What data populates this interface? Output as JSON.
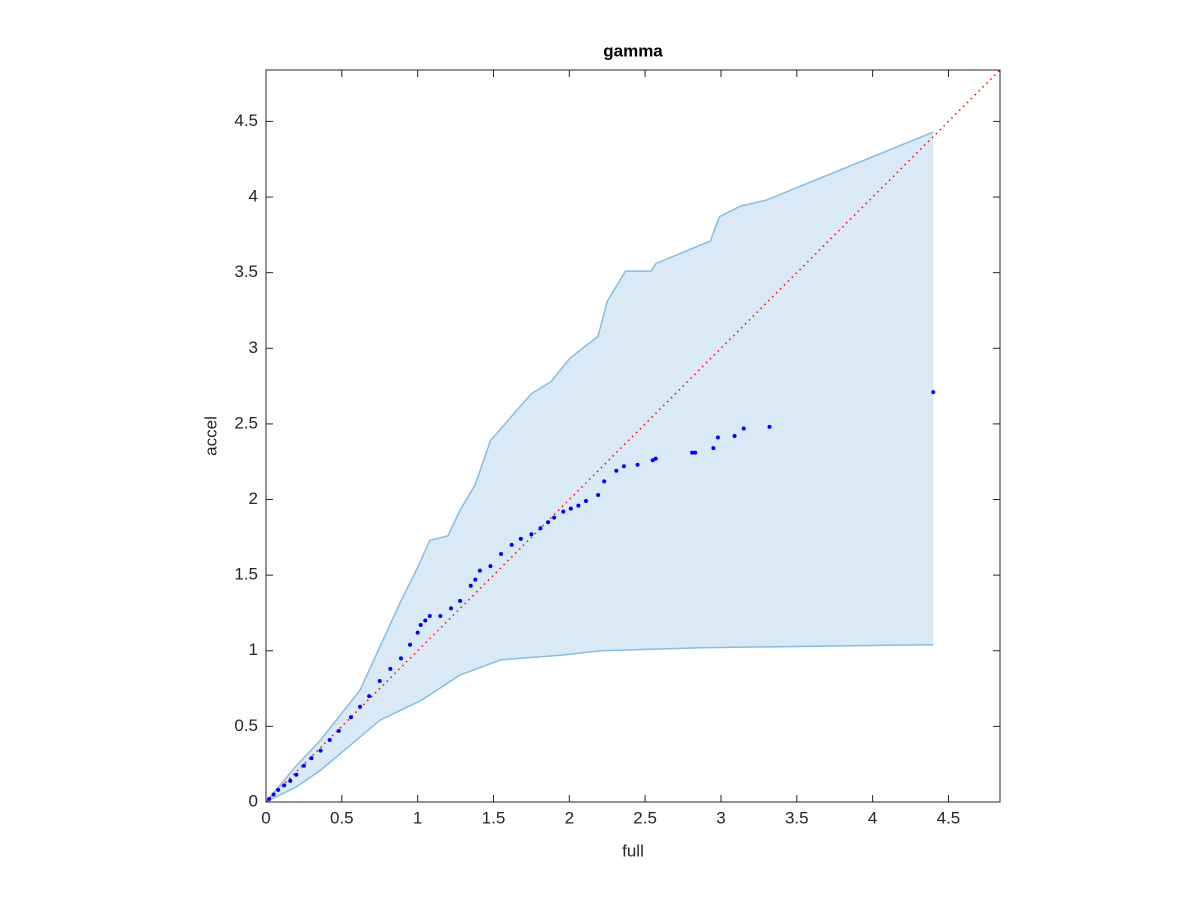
{
  "chart_data": {
    "type": "scatter",
    "title": "gamma",
    "x_label": "full",
    "y_label": "accel",
    "xlim": [
      0,
      4.84
    ],
    "ylim": [
      0,
      4.84
    ],
    "xticks": [
      0,
      0.5,
      1,
      1.5,
      2,
      2.5,
      3,
      3.5,
      4,
      4.5
    ],
    "yticks": [
      0,
      0.5,
      1,
      1.5,
      2,
      2.5,
      3,
      3.5,
      4,
      4.5
    ],
    "color": "#0000ff",
    "x": [
      0.02,
      0.05,
      0.08,
      0.12,
      0.16,
      0.2,
      0.25,
      0.3,
      0.36,
      0.42,
      0.48,
      0.56,
      0.62,
      0.68,
      0.75,
      0.82,
      0.89,
      0.95,
      1.0,
      1.02,
      1.05,
      1.08,
      1.15,
      1.22,
      1.28,
      1.35,
      1.38,
      1.41,
      1.48,
      1.55,
      1.62,
      1.68,
      1.75,
      1.81,
      1.86,
      1.9,
      1.96,
      2.01,
      2.06,
      2.11,
      2.19,
      2.23,
      2.31,
      2.36,
      2.45,
      2.55,
      2.57,
      2.81,
      2.83,
      2.95,
      2.98,
      3.09,
      3.15,
      3.32,
      4.4
    ],
    "values": [
      0.02,
      0.05,
      0.08,
      0.11,
      0.14,
      0.18,
      0.24,
      0.29,
      0.34,
      0.41,
      0.47,
      0.56,
      0.63,
      0.7,
      0.8,
      0.88,
      0.95,
      1.04,
      1.12,
      1.17,
      1.2,
      1.23,
      1.23,
      1.28,
      1.33,
      1.43,
      1.47,
      1.53,
      1.56,
      1.64,
      1.7,
      1.74,
      1.77,
      1.81,
      1.85,
      1.88,
      1.92,
      1.94,
      1.96,
      1.99,
      2.03,
      2.12,
      2.19,
      2.22,
      2.23,
      2.26,
      2.27,
      2.31,
      2.31,
      2.34,
      2.41,
      2.42,
      2.47,
      2.48,
      2.71
    ],
    "band": {
      "color": "#d9e9f5",
      "edge_color": "#88bde0",
      "upper": {
        "x": [
          0,
          0.2,
          0.36,
          0.62,
          0.89,
          1.0,
          1.08,
          1.2,
          1.28,
          1.38,
          1.48,
          1.55,
          1.68,
          1.75,
          1.88,
          2.0,
          2.1,
          2.19,
          2.25,
          2.37,
          2.54,
          2.57,
          2.93,
          2.99,
          3.13,
          3.3,
          4.4
        ],
        "y": [
          0,
          0.24,
          0.41,
          0.74,
          1.33,
          1.55,
          1.73,
          1.76,
          1.93,
          2.1,
          2.39,
          2.47,
          2.62,
          2.7,
          2.78,
          2.93,
          3.01,
          3.08,
          3.31,
          3.51,
          3.51,
          3.56,
          3.71,
          3.87,
          3.94,
          3.98,
          4.43
        ]
      },
      "lower": {
        "x": [
          0,
          0.2,
          0.36,
          0.55,
          0.75,
          1.02,
          1.28,
          1.55,
          1.94,
          2.21,
          2.87,
          4.4
        ],
        "y": [
          0,
          0.1,
          0.21,
          0.37,
          0.54,
          0.67,
          0.84,
          0.94,
          0.97,
          1.0,
          1.02,
          1.04
        ]
      }
    },
    "reference_line": {
      "color": "#ff0000",
      "x": [
        0,
        4.84
      ],
      "y": [
        0,
        4.84
      ]
    }
  }
}
